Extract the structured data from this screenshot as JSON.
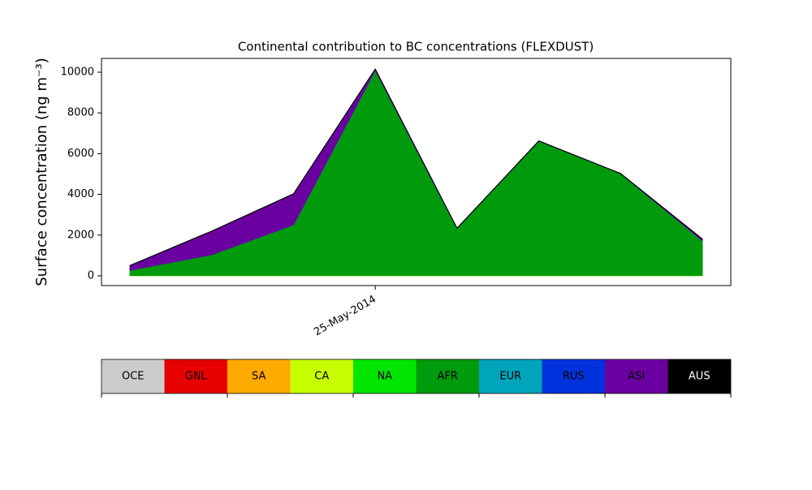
{
  "chart_data": {
    "type": "stacked_area",
    "title": "Continental contribution to BC concentrations (FLEXDUST)",
    "y_label": "Surface concentration (ng m⁻³)",
    "categories": [
      null,
      null,
      null,
      "25-May-2014",
      null,
      null,
      null,
      null
    ],
    "ylim": [
      -478,
      10677
    ],
    "yticks": [
      0,
      2000,
      4000,
      6000,
      8000,
      10000
    ],
    "series": [
      {
        "name": "OCE",
        "color": "#cccccc",
        "values": [
          0,
          0,
          0,
          0,
          0,
          0,
          0,
          0
        ]
      },
      {
        "name": "GNL",
        "color": "#e60000",
        "values": [
          0,
          0,
          0,
          0,
          0,
          0,
          0,
          0
        ]
      },
      {
        "name": "SA",
        "color": "#ffaa00",
        "values": [
          0,
          0,
          0,
          0,
          0,
          0,
          0,
          0
        ]
      },
      {
        "name": "CA",
        "color": "#c8ff00",
        "values": [
          15,
          15,
          15,
          15,
          15,
          15,
          15,
          15
        ]
      },
      {
        "name": "NA",
        "color": "#00e600",
        "values": [
          0,
          0,
          0,
          0,
          0,
          0,
          0,
          0
        ]
      },
      {
        "name": "AFR",
        "color": "#009a0d",
        "values": [
          265,
          1025,
          2495,
          10085,
          2315,
          6605,
          5005,
          1715
        ]
      },
      {
        "name": "EUR",
        "color": "#00a5bb",
        "values": [
          0,
          0,
          0,
          0,
          0,
          0,
          0,
          0
        ]
      },
      {
        "name": "RUS",
        "color": "#0033dd",
        "values": [
          0,
          0,
          0,
          0,
          0,
          0,
          0,
          0
        ]
      },
      {
        "name": "ASI",
        "color": "#6a00a0",
        "values": [
          220,
          1150,
          1510,
          50,
          0,
          0,
          0,
          70
        ]
      },
      {
        "name": "AUS",
        "color": "#000000",
        "values": [
          10,
          10,
          10,
          10,
          10,
          10,
          10,
          10
        ]
      }
    ]
  }
}
